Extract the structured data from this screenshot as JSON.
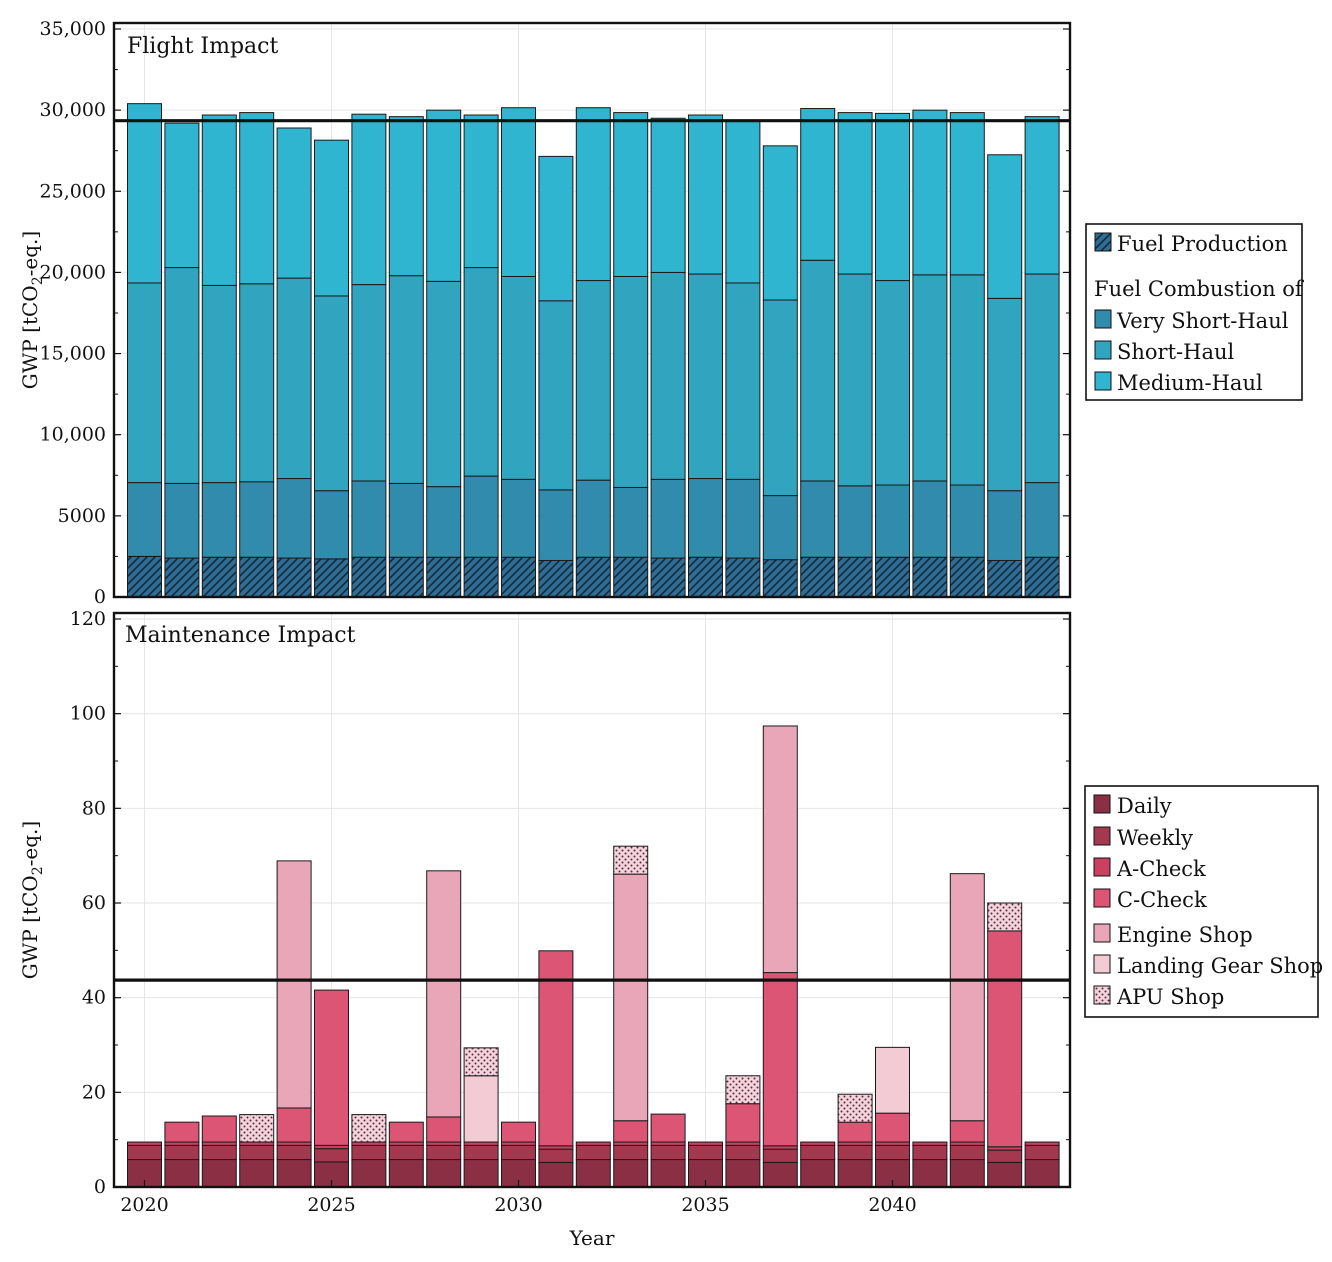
{
  "colors": {
    "fuel_production": "#2e6e95",
    "very_short_haul": "#318bac",
    "short_haul": "#31a4c0",
    "medium_haul": "#30b5d0",
    "daily": "#8b2f45",
    "weekly": "#a3384f",
    "a_check": "#c94060",
    "c_check": "#dc5574",
    "engine_shop": "#e9a6b8",
    "landing_gear_shop": "#f2cbd5",
    "apu_shop": "#f3d4dc"
  },
  "chart_data": [
    {
      "type": "bar",
      "stacked": true,
      "title": "Flight Impact",
      "xlabel": "",
      "ylabel": "GWP [tCO₂-eq.]",
      "ylabel_main": "GWP [tCO",
      "ylabel_sub": "2",
      "ylabel_end": "-eq.]",
      "ylim": [
        0,
        35000
      ],
      "yticks": [
        0,
        5000,
        10000,
        15000,
        20000,
        25000,
        30000,
        35000
      ],
      "ytick_labels": [
        "0",
        "5000",
        "10,000",
        "15,000",
        "20,000",
        "25,000",
        "30,000",
        "35,000"
      ],
      "reference_line": 29350,
      "grid": true,
      "categories": [
        2020,
        2021,
        2022,
        2023,
        2024,
        2025,
        2026,
        2027,
        2028,
        2029,
        2030,
        2031,
        2032,
        2033,
        2034,
        2035,
        2036,
        2037,
        2038,
        2039,
        2040,
        2041,
        2042,
        2043,
        2044
      ],
      "series": [
        {
          "key": "fuel_production",
          "name": "Fuel Production",
          "pattern": "hatch",
          "values": [
            2500,
            2400,
            2450,
            2450,
            2400,
            2350,
            2450,
            2450,
            2450,
            2450,
            2450,
            2250,
            2450,
            2450,
            2400,
            2450,
            2400,
            2300,
            2450,
            2450,
            2450,
            2450,
            2450,
            2250,
            2450
          ]
        },
        {
          "key": "very_short_haul",
          "name": "Very Short-Haul",
          "values": [
            4550,
            4600,
            4600,
            4650,
            4900,
            4200,
            4700,
            4550,
            4350,
            5000,
            4800,
            4350,
            4750,
            4300,
            4850,
            4850,
            4850,
            3950,
            4700,
            4400,
            4450,
            4700,
            4450,
            4300,
            4600
          ]
        },
        {
          "key": "short_haul",
          "name": "Short-Haul",
          "values": [
            12300,
            13300,
            12150,
            12200,
            12350,
            12000,
            12100,
            12800,
            12650,
            12850,
            12500,
            11650,
            12300,
            13000,
            12750,
            12600,
            12100,
            12050,
            13600,
            13050,
            12600,
            12700,
            12950,
            11850,
            12850
          ]
        },
        {
          "key": "medium_haul",
          "name": "Medium-Haul",
          "values": [
            11050,
            8900,
            10500,
            10550,
            9250,
            9600,
            10500,
            9800,
            10550,
            9400,
            10400,
            8900,
            10650,
            10100,
            9500,
            9800,
            9950,
            9500,
            9350,
            9950,
            10300,
            10150,
            10000,
            8850,
            9700
          ]
        }
      ],
      "legend": {
        "placement": "right",
        "entries": [
          "Fuel Production",
          "Very Short-Haul",
          "Short-Haul",
          "Medium-Haul"
        ],
        "group_heading": "Fuel Combustion of"
      }
    },
    {
      "type": "bar",
      "stacked": true,
      "title": "Maintenance Impact",
      "xlabel": "Year",
      "ylabel": "GWP [tCO₂-eq.]",
      "ylabel_main": "GWP [tCO",
      "ylabel_sub": "2",
      "ylabel_end": "-eq.]",
      "ylim": [
        0,
        120
      ],
      "yticks": [
        0,
        20,
        40,
        60,
        80,
        100,
        120
      ],
      "ytick_labels": [
        "0",
        "20",
        "40",
        "60",
        "80",
        "100",
        "120"
      ],
      "xticks": [
        2020,
        2025,
        2030,
        2035,
        2040
      ],
      "xtick_labels": [
        "2020",
        "2025",
        "2030",
        "2035",
        "2040"
      ],
      "reference_line": 43.7,
      "grid": true,
      "categories": [
        2020,
        2021,
        2022,
        2023,
        2024,
        2025,
        2026,
        2027,
        2028,
        2029,
        2030,
        2031,
        2032,
        2033,
        2034,
        2035,
        2036,
        2037,
        2038,
        2039,
        2040,
        2041,
        2042,
        2043,
        2044
      ],
      "series": [
        {
          "key": "daily",
          "name": "Daily",
          "values": [
            5.8,
            5.8,
            5.8,
            5.8,
            5.8,
            5.3,
            5.8,
            5.8,
            5.8,
            5.8,
            5.8,
            5.2,
            5.8,
            5.8,
            5.8,
            5.8,
            5.8,
            5.2,
            5.8,
            5.8,
            5.8,
            5.8,
            5.8,
            5.2,
            5.8
          ]
        },
        {
          "key": "weekly",
          "name": "Weekly",
          "values": [
            3.0,
            3.0,
            3.0,
            3.0,
            3.0,
            2.8,
            3.0,
            3.0,
            3.0,
            3.0,
            3.0,
            2.8,
            3.0,
            3.0,
            3.0,
            3.0,
            3.0,
            2.8,
            3.0,
            3.0,
            3.0,
            3.0,
            3.0,
            2.6,
            3.0
          ]
        },
        {
          "key": "a_check",
          "name": "A-Check",
          "values": [
            0.7,
            0.7,
            0.7,
            0.7,
            0.7,
            0.7,
            0.7,
            0.7,
            0.7,
            0.7,
            0.7,
            0.7,
            0.7,
            0.7,
            0.7,
            0.7,
            0.7,
            0.7,
            0.7,
            0.7,
            0.7,
            0.7,
            0.7,
            0.7,
            0.7
          ]
        },
        {
          "key": "c_check",
          "name": "C-Check",
          "values": [
            0,
            4.2,
            5.5,
            0,
            7.2,
            32.8,
            0,
            4.2,
            5.3,
            0,
            4.2,
            41.2,
            0,
            4.5,
            5.9,
            0,
            8.1,
            36.6,
            0,
            4.2,
            6.1,
            0,
            4.5,
            45.6,
            0
          ]
        },
        {
          "key": "engine_shop",
          "name": "Engine Shop",
          "values": [
            0,
            0,
            0,
            0,
            52.2,
            0,
            0,
            0,
            52.0,
            0,
            0,
            0,
            0,
            52.1,
            0,
            0,
            0,
            52.1,
            0,
            0,
            0,
            0,
            52.2,
            0,
            0
          ]
        },
        {
          "key": "landing_gear_shop",
          "name": "Landing Gear Shop",
          "values": [
            0,
            0,
            0,
            0,
            0,
            0,
            0,
            0,
            0,
            14.0,
            0,
            0,
            0,
            0,
            0,
            0,
            0,
            0,
            0,
            0,
            13.9,
            0,
            0,
            0,
            0
          ]
        },
        {
          "key": "apu_shop",
          "name": "APU Shop",
          "pattern": "dots",
          "values": [
            0,
            0,
            0,
            5.8,
            0,
            0,
            5.8,
            0,
            0,
            5.9,
            0,
            0,
            0,
            5.9,
            0,
            0,
            5.9,
            0,
            0,
            5.9,
            0,
            0,
            0,
            5.9,
            0
          ]
        }
      ],
      "legend": {
        "placement": "right",
        "entries": [
          "Daily",
          "Weekly",
          "A-Check",
          "C-Check",
          "Engine Shop",
          "Landing Gear Shop",
          "APU Shop"
        ]
      }
    }
  ]
}
